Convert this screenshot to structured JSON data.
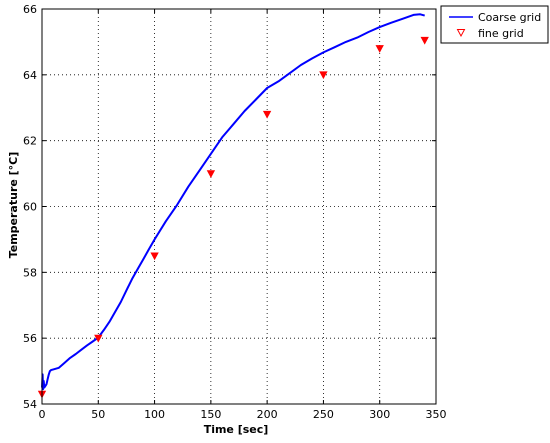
{
  "chart_data": {
    "type": "line",
    "xlabel": "Time [sec]",
    "ylabel": "Temperature [°C]",
    "xlim": [
      0,
      350
    ],
    "ylim": [
      54,
      66
    ],
    "x_ticks": [
      0,
      50,
      100,
      150,
      200,
      250,
      300,
      350
    ],
    "y_ticks": [
      54,
      56,
      58,
      60,
      62,
      64,
      66
    ],
    "grid": true,
    "grid_style": "dotted",
    "legend_position": "outside-top-right",
    "series": [
      {
        "name": "Coarse grid",
        "style": "line",
        "color": "#0000ff",
        "x": [
          0,
          0.5,
          1,
          1.5,
          2,
          3,
          4,
          5,
          6,
          7,
          8,
          10,
          15,
          20,
          25,
          30,
          35,
          40,
          45,
          50,
          55,
          60,
          65,
          70,
          75,
          80,
          85,
          90,
          95,
          100,
          110,
          120,
          130,
          140,
          150,
          160,
          170,
          180,
          190,
          200,
          210,
          220,
          230,
          240,
          250,
          260,
          270,
          280,
          290,
          300,
          310,
          320,
          330,
          336,
          340
        ],
        "y": [
          54.5,
          54.9,
          54.45,
          54.7,
          54.5,
          54.55,
          54.6,
          54.75,
          54.9,
          55.0,
          55.03,
          55.05,
          55.1,
          55.25,
          55.4,
          55.52,
          55.65,
          55.78,
          55.9,
          56.02,
          56.25,
          56.5,
          56.8,
          57.1,
          57.45,
          57.8,
          58.1,
          58.4,
          58.7,
          59.0,
          59.55,
          60.05,
          60.6,
          61.1,
          61.6,
          62.1,
          62.5,
          62.9,
          63.25,
          63.6,
          63.8,
          64.05,
          64.3,
          64.5,
          64.68,
          64.84,
          65.0,
          65.13,
          65.3,
          65.45,
          65.58,
          65.7,
          65.82,
          65.84,
          65.8
        ]
      },
      {
        "name": "fine grid",
        "style": "markers",
        "marker": "triangle-down",
        "color": "#ff0000",
        "x": [
          0,
          50,
          100,
          150,
          200,
          250,
          300,
          340
        ],
        "y": [
          54.3,
          56.0,
          58.5,
          61.0,
          62.8,
          64.0,
          64.8,
          65.05
        ]
      }
    ]
  }
}
